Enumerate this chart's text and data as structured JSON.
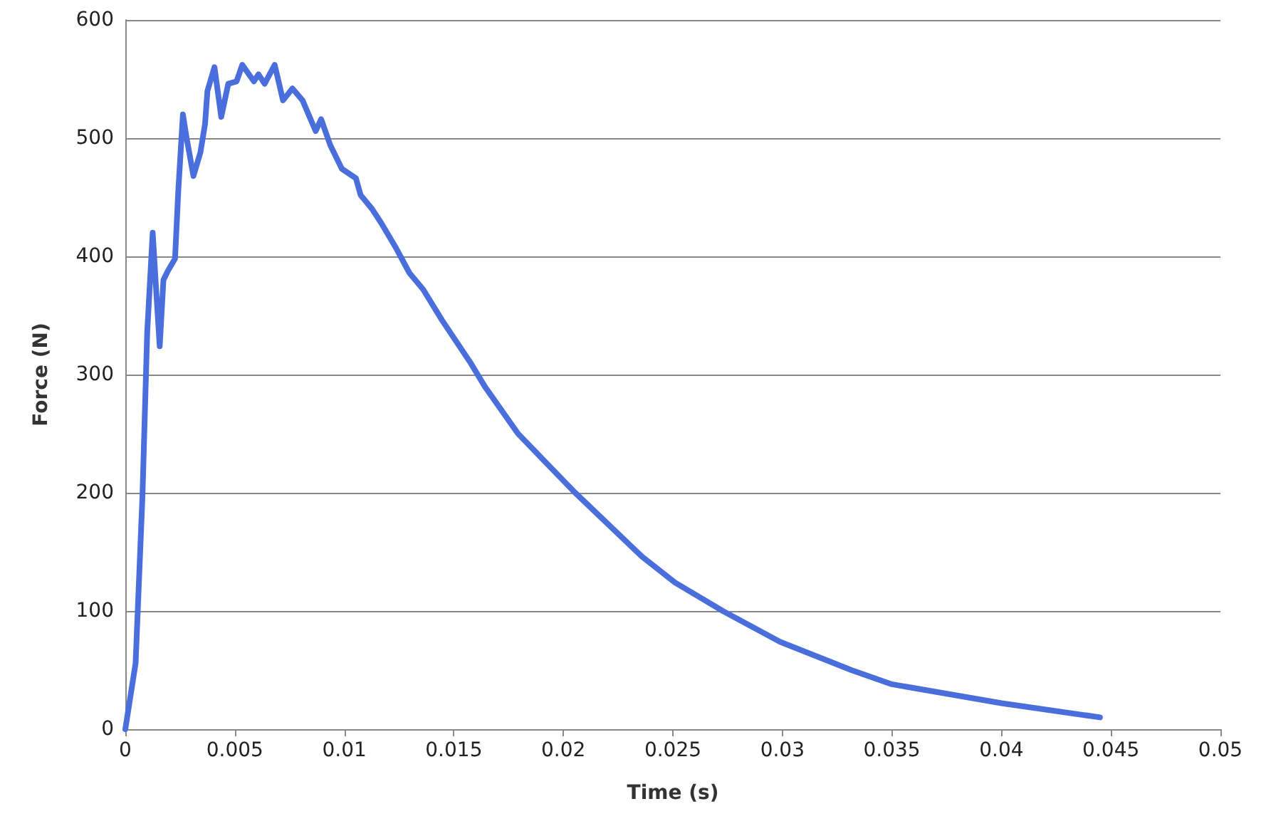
{
  "chart_data": {
    "type": "line",
    "xlabel": "Time (s)",
    "ylabel": "Force (N)",
    "x": [
      0,
      0.00047,
      0.00078,
      0.001,
      0.00125,
      0.00142,
      0.00157,
      0.00174,
      0.00195,
      0.00227,
      0.00242,
      0.00263,
      0.0028,
      0.00311,
      0.00343,
      0.00364,
      0.00375,
      0.00407,
      0.00438,
      0.0047,
      0.00508,
      0.00534,
      0.00587,
      0.00608,
      0.00636,
      0.00682,
      0.0072,
      0.00763,
      0.00809,
      0.00869,
      0.00894,
      0.00936,
      0.00989,
      0.01053,
      0.01074,
      0.01127,
      0.01169,
      0.01233,
      0.01297,
      0.0136,
      0.01446,
      0.01576,
      0.01641,
      0.01793,
      0.02054,
      0.02359,
      0.0251,
      0.02728,
      0.02989,
      0.03315,
      0.035,
      0.04,
      0.0445
    ],
    "series": [
      {
        "color": "#4a6fdc",
        "values": [
          0,
          56,
          196,
          336,
          420,
          368,
          324,
          380,
          388,
          398,
          456,
          520,
          500,
          468,
          488,
          512,
          540,
          560,
          518,
          546,
          548,
          562,
          548,
          554,
          546,
          562,
          532,
          542,
          532,
          506,
          516,
          494,
          474,
          466,
          452,
          440,
          428,
          408,
          386,
          372,
          346,
          310,
          290,
          250,
          200,
          146,
          124,
          100,
          74,
          50,
          38,
          22,
          10
        ]
      }
    ],
    "xlim": [
      0,
      0.05
    ],
    "xticks": [
      0,
      0.005,
      0.01,
      0.015,
      0.02,
      0.025,
      0.03,
      0.035,
      0.04,
      0.045,
      0.05
    ],
    "ylim": [
      0,
      600
    ],
    "yticks": [
      0,
      100,
      200,
      300,
      400,
      500,
      600
    ],
    "grid": "y",
    "marker": "none",
    "line_style": "solid"
  }
}
